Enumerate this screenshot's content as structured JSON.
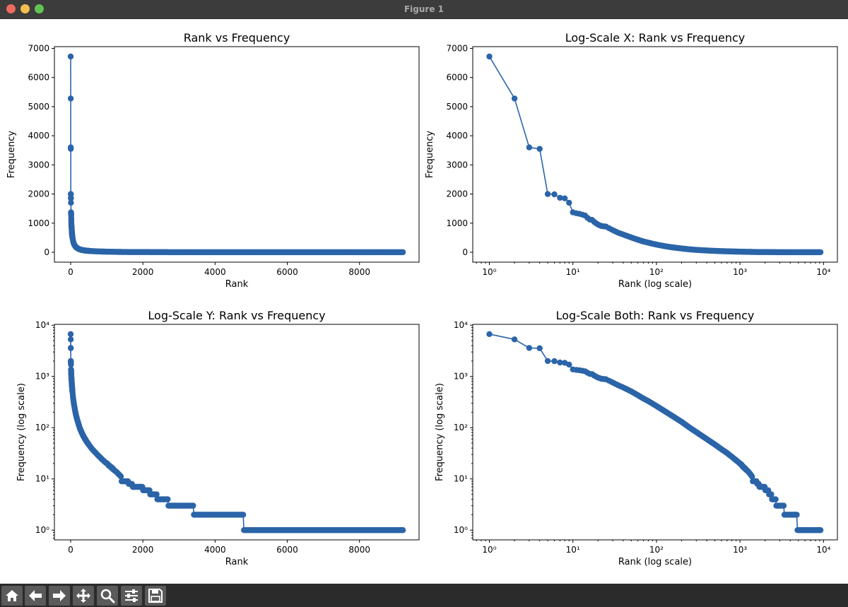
{
  "window": {
    "title": "Figure 1"
  },
  "toolbar": {
    "buttons": [
      {
        "name": "home-button",
        "icon": "home-icon"
      },
      {
        "name": "back-button",
        "icon": "arrow-left-icon"
      },
      {
        "name": "forward-button",
        "icon": "arrow-right-icon"
      },
      {
        "name": "pan-button",
        "icon": "move-icon"
      },
      {
        "name": "zoom-button",
        "icon": "magnifier-icon"
      },
      {
        "name": "configure-subplots-button",
        "icon": "sliders-icon"
      },
      {
        "name": "save-button",
        "icon": "floppy-disk-icon"
      }
    ]
  },
  "colors": {
    "series": "#2b64a8",
    "background": "#ffffff",
    "axis": "#000000"
  },
  "chart_data": [
    {
      "type": "line",
      "title": "Rank vs Frequency",
      "xlabel": "Rank",
      "ylabel": "Frequency",
      "xscale": "linear",
      "yscale": "linear",
      "xlim": [
        -450,
        9650
      ],
      "ylim": [
        -340,
        7060
      ],
      "xticks": [
        0,
        2000,
        4000,
        6000,
        8000
      ],
      "yticks": [
        0,
        1000,
        2000,
        3000,
        4000,
        5000,
        6000,
        7000
      ],
      "grid": false,
      "marker": "circle"
    },
    {
      "type": "line",
      "title": "Log-Scale X: Rank vs Frequency",
      "xlabel": "Rank (log scale)",
      "ylabel": "Frequency",
      "xscale": "log",
      "yscale": "linear",
      "xlim": [
        0.633,
        14660
      ],
      "ylim": [
        -340,
        7060
      ],
      "xticks": [
        1,
        10,
        100,
        1000,
        10000
      ],
      "yticks": [
        0,
        1000,
        2000,
        3000,
        4000,
        5000,
        6000,
        7000
      ],
      "grid": false,
      "marker": "circle"
    },
    {
      "type": "line",
      "title": "Log-Scale Y: Rank vs Frequency",
      "xlabel": "Rank",
      "ylabel": "Frequency (log scale)",
      "xscale": "linear",
      "yscale": "log",
      "xlim": [
        -450,
        9650
      ],
      "ylim": [
        0.646,
        10400
      ],
      "xticks": [
        0,
        2000,
        4000,
        6000,
        8000
      ],
      "yticks": [
        1,
        10,
        100,
        1000,
        10000
      ],
      "grid": false,
      "marker": "circle"
    },
    {
      "type": "line",
      "title": "Log-Scale Both: Rank vs Frequency",
      "xlabel": "Rank (log scale)",
      "ylabel": "Frequency (log scale)",
      "xscale": "log",
      "yscale": "log",
      "xlim": [
        0.633,
        14660
      ],
      "ylim": [
        0.646,
        10400
      ],
      "xticks": [
        1,
        10,
        100,
        1000,
        10000
      ],
      "yticks": [
        1,
        10,
        100,
        1000,
        10000
      ],
      "grid": false,
      "marker": "circle"
    }
  ],
  "series": {
    "name": "",
    "max_rank": 9200,
    "points": [
      [
        1,
        6720
      ],
      [
        2,
        5280
      ],
      [
        3,
        3600
      ],
      [
        4,
        3550
      ],
      [
        5,
        2000
      ],
      [
        6,
        1990
      ],
      [
        7,
        1870
      ],
      [
        8,
        1850
      ],
      [
        9,
        1700
      ],
      [
        10,
        1370
      ],
      [
        11,
        1340
      ],
      [
        12,
        1320
      ],
      [
        13,
        1290
      ],
      [
        14,
        1260
      ],
      [
        15,
        1180
      ],
      [
        16,
        1120
      ],
      [
        17,
        1110
      ],
      [
        18,
        1040
      ],
      [
        20,
        950
      ],
      [
        22,
        900
      ],
      [
        25,
        880
      ],
      [
        30,
        760
      ],
      [
        35,
        670
      ],
      [
        40,
        610
      ],
      [
        50,
        510
      ],
      [
        60,
        430
      ],
      [
        70,
        370
      ],
      [
        80,
        330
      ],
      [
        100,
        265
      ],
      [
        120,
        220
      ],
      [
        150,
        175
      ],
      [
        200,
        130
      ],
      [
        250,
        100
      ],
      [
        300,
        82
      ],
      [
        400,
        60
      ],
      [
        500,
        47
      ],
      [
        600,
        38
      ],
      [
        700,
        32
      ],
      [
        800,
        27
      ],
      [
        1000,
        20
      ],
      [
        1200,
        15
      ],
      [
        1400,
        11
      ],
      [
        1600,
        9
      ],
      [
        1700,
        8
      ],
      [
        2000,
        7
      ],
      [
        2200,
        6
      ],
      [
        2400,
        5
      ],
      [
        2700,
        4
      ],
      [
        3400,
        3
      ],
      [
        4800,
        2
      ],
      [
        9200,
        1
      ]
    ]
  }
}
